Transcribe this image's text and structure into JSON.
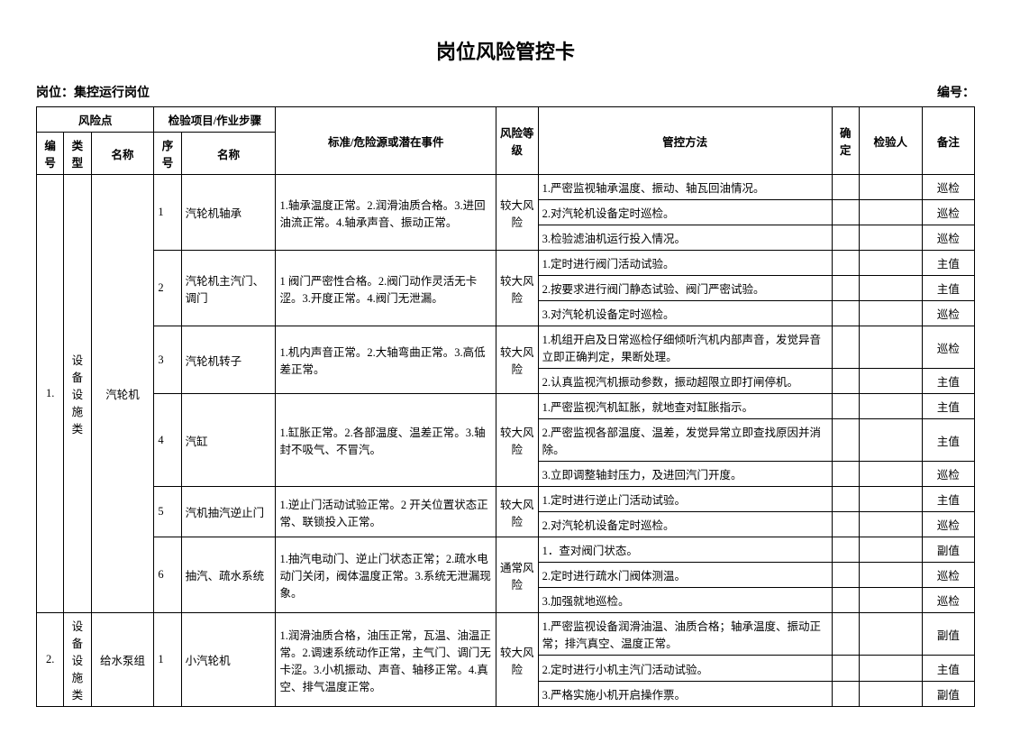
{
  "title": "岗位风险管控卡",
  "meta": {
    "position_label": "岗位：集控运行岗位",
    "code_label": "编号："
  },
  "headers": {
    "risk_point": "风险点",
    "inspection": "检验项目/作业步骤",
    "no": "编号",
    "type": "类型",
    "name": "名称",
    "seq": "序号",
    "item_name": "名称",
    "standard": "标准/危险源或潜在事件",
    "level": "风险等级",
    "control": "管控方法",
    "confirm": "确定",
    "inspector": "检验人",
    "note": "备注"
  },
  "groups": [
    {
      "no": "1.",
      "type": "设备设施类",
      "name": "汽轮机",
      "items": [
        {
          "seq": "1",
          "item": "汽轮机轴承",
          "standard": "1.轴承温度正常。2.润滑油质合格。3.进回油流正常。4.轴承声音、振动正常。",
          "level": "较大风险",
          "controls": [
            {
              "text": "1.严密监视轴承温度、振动、轴瓦回油情况。",
              "note": "巡检"
            },
            {
              "text": "2.对汽轮机设备定时巡检。",
              "note": "巡检"
            },
            {
              "text": "3.检验滤油机运行投入情况。",
              "note": "巡检"
            }
          ]
        },
        {
          "seq": "2",
          "item": "汽轮机主汽门、调门",
          "standard": "1 阀门严密性合格。2.阀门动作灵活无卡涩。3.开度正常。4.阀门无泄漏。",
          "level": "较大风险",
          "controls": [
            {
              "text": "1.定时进行阀门活动试验。",
              "note": "主值"
            },
            {
              "text": "2.按要求进行阀门静态试验、阀门严密试验。",
              "note": "主值"
            },
            {
              "text": "3.对汽轮机设备定时巡检。",
              "note": "巡检"
            }
          ]
        },
        {
          "seq": "3",
          "item": "汽轮机转子",
          "standard": "1.机内声音正常。2.大轴弯曲正常。3.高低差正常。",
          "level": "较大风险",
          "controls": [
            {
              "text": "1.机组开启及日常巡检仔细倾听汽机内部声音，发觉异音立即正确判定，果断处理。",
              "note": "巡检"
            },
            {
              "text": "2.认真监视汽机振动参数，振动超限立即打闸停机。",
              "note": "主值"
            }
          ]
        },
        {
          "seq": "4",
          "item": "汽缸",
          "standard": "1.缸胀正常。2.各部温度、温差正常。3.轴封不吸气、不冒汽。",
          "level": "较大风险",
          "controls": [
            {
              "text": "1.严密监视汽机缸胀，就地查对缸胀指示。",
              "note": "主值"
            },
            {
              "text": "2.严密监视各部温度、温差，发觉异常立即查找原因并消除。",
              "note": "主值"
            },
            {
              "text": "3.立即调整轴封压力，及进回汽门开度。",
              "note": "巡检"
            }
          ]
        },
        {
          "seq": "5",
          "item": "汽机抽汽逆止门",
          "standard": "1.逆止门活动试验正常。2 开关位置状态正常、联锁投入正常。",
          "level": "较大风险",
          "controls": [
            {
              "text": "1.定时进行逆止门活动试验。",
              "note": "主值"
            },
            {
              "text": "2.对汽轮机设备定时巡检。",
              "note": "巡检"
            }
          ]
        },
        {
          "seq": "6",
          "item": "抽汽、疏水系统",
          "standard": "1.抽汽电动门、逆止门状态正常；2.疏水电动门关闭，阀体温度正常。3.系统无泄漏现象。",
          "level": "通常风险",
          "controls": [
            {
              "text": "1．查对阀门状态。",
              "note": "副值"
            },
            {
              "text": "2.定时进行疏水门阀体测温。",
              "note": "巡检"
            },
            {
              "text": "3.加强就地巡检。",
              "note": "巡检"
            }
          ]
        }
      ]
    },
    {
      "no": "2.",
      "type": "设备设施类",
      "name": "给水泵组",
      "items": [
        {
          "seq": "1",
          "item": "小汽轮机",
          "standard": "1.润滑油质合格，油压正常，瓦温、油温正常。2.调速系统动作正常，主气门、调门无卡涩。3.小机振动、声音、轴移正常。4.真空、排气温度正常。",
          "level": "较大风险",
          "controls": [
            {
              "text": "1.严密监视设备润滑油温、油质合格；轴承温度、振动正常；排汽真空、温度正常。",
              "note": "副值"
            },
            {
              "text": "2.定时进行小机主汽门活动试验。",
              "note": "主值"
            },
            {
              "text": "3.严格实施小机开启操作票。",
              "note": "副值"
            }
          ]
        }
      ]
    }
  ]
}
